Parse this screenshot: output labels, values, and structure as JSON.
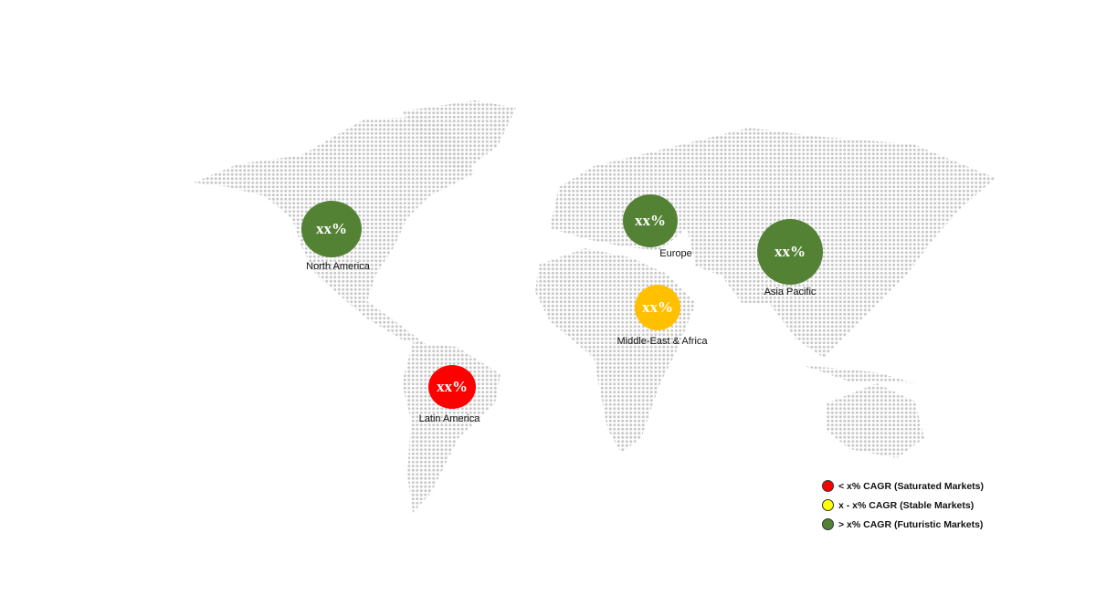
{
  "colors": {
    "saturated": "#ff0000",
    "stable": "#ffc000",
    "futuristic": "#548235",
    "legend_stable": "#ffff00",
    "map_dots": "#c8c8c8"
  },
  "regions": [
    {
      "name": "North America",
      "value": "xx%",
      "category": "futuristic"
    },
    {
      "name": "Europe",
      "value": "xx%",
      "category": "futuristic"
    },
    {
      "name": "Asia Pacific",
      "value": "xx%",
      "category": "futuristic"
    },
    {
      "name": "Middle-East & Africa",
      "value": "xx%",
      "category": "stable"
    },
    {
      "name": "Latin America",
      "value": "xx%",
      "category": "saturated"
    }
  ],
  "legend": [
    {
      "label": "< x% CAGR (Saturated Markets)",
      "color": "#ff0000"
    },
    {
      "label": "x - x% CAGR (Stable Markets)",
      "color": "#ffff00"
    },
    {
      "label": "> x% CAGR (Futuristic Markets)",
      "color": "#548235"
    }
  ]
}
